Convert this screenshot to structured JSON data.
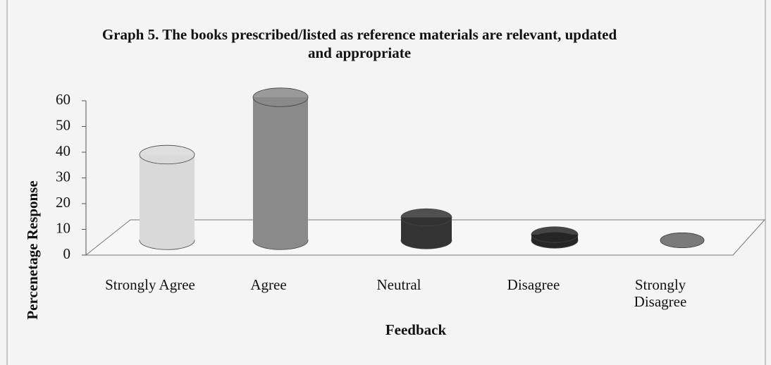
{
  "chart_data": {
    "type": "bar3d",
    "title": "Graph 5. The books prescribed/listed as reference materials are relevant, updated and appropriate",
    "x_label": "Feedback",
    "y_label": "Percenetage Response",
    "categories": [
      "Strongly Agree",
      "Agree",
      "Neutral",
      "Disagree",
      "Strongly Disagree"
    ],
    "values": [
      33.3,
      55.6,
      8.9,
      2.2,
      0
    ],
    "colors": [
      "#d9d9d9",
      "#8a8a8a",
      "#333333",
      "#262626",
      "#7a7a7a"
    ],
    "ylim": [
      0,
      60
    ],
    "yticks": [
      0,
      10,
      20,
      30,
      40,
      50,
      60
    ],
    "grid": false
  }
}
